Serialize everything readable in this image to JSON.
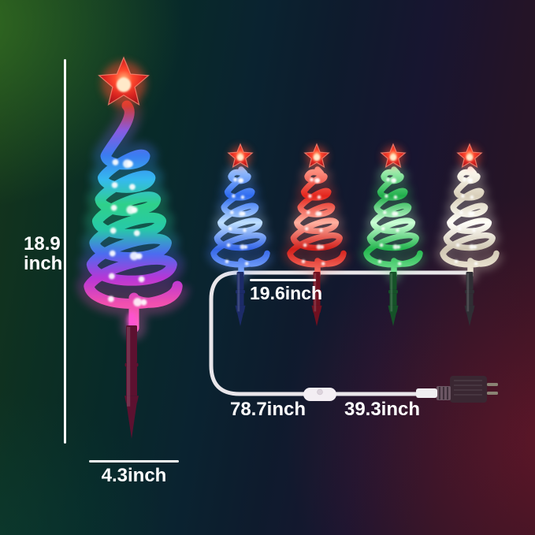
{
  "title": "Spiral Christmas tree stake lights dimension diagram",
  "labels": {
    "height_value": "18.9",
    "height_unit": "inch",
    "base_width": "4.3inch",
    "tree_spacing": "19.6inch",
    "lead_cable": "78.7inch",
    "plug_cable": "39.3inch"
  },
  "colors": {
    "label_text": "#ffffff",
    "dimension_line": "#f7f7f7",
    "cable": "#e9e6ea",
    "switch_body": "#f3eef3",
    "switch_button": "#ddd4dd",
    "plug_body": "#3a2732",
    "plug_collar": "#6b5663",
    "plug_connector": "#efeff1",
    "plug_prong": "#8a8374",
    "star_core": "#ffb37a",
    "star_mid": "#ff4a2e",
    "star_edge": "#99121a"
  },
  "trees": {
    "large": {
      "label": "multicolor spiral tree",
      "coil_stops": [
        "#d23a32",
        "#8a5ae0",
        "#3b7bf0",
        "#35b9ef",
        "#2fd08a",
        "#27c9a8",
        "#4b6cf0",
        "#b836d6",
        "#f04fae",
        "#ff66c4"
      ],
      "stake": "#5c1130"
    },
    "small": [
      {
        "label": "blue spiral tree",
        "coil_stops": [
          "#9cc4ff",
          "#2e6bf0",
          "#bfe0ff",
          "#3566e8",
          "#8ab4ff"
        ],
        "stake": "#1c2b68"
      },
      {
        "label": "red spiral tree",
        "coil_stops": [
          "#ff9a8a",
          "#e4251c",
          "#ffb0a0",
          "#d21f1a",
          "#ff7d6e"
        ],
        "stake": "#701020"
      },
      {
        "label": "green spiral tree",
        "coil_stops": [
          "#a8f5b8",
          "#1fae4a",
          "#ccffd6",
          "#23b54e",
          "#7ee89a"
        ],
        "stake": "#155228"
      },
      {
        "label": "warm white spiral tree",
        "coil_stops": [
          "#fffdf4",
          "#d9cfba",
          "#fffef8",
          "#cfc6b2",
          "#f5eedd"
        ],
        "stake": "#2f2e34"
      }
    ]
  }
}
